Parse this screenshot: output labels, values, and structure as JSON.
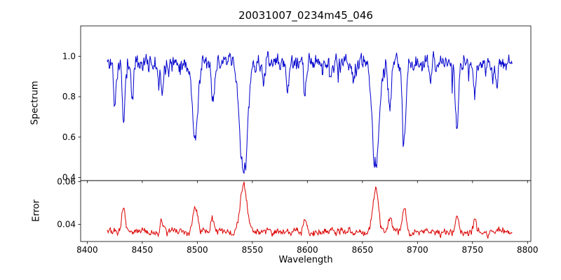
{
  "figure": {
    "title": "20031007_0234m45_046",
    "xlabel": "Wavelength",
    "ylabel_top": "Spectrum",
    "ylabel_bottom": "Error",
    "background": "#ffffff"
  },
  "chart_data": {
    "type": "line",
    "title": "20031007_0234m45_046",
    "xlabel": "Wavelength",
    "legend": "none",
    "grid": false,
    "seed": 11,
    "x_range": [
      8418,
      8786
    ],
    "x_step": 0.5,
    "xlim": [
      8394,
      8803
    ],
    "x_ticks": [
      8400,
      8450,
      8500,
      8550,
      8600,
      8650,
      8700,
      8750,
      8800
    ],
    "panels": [
      {
        "name": "spectrum",
        "ylabel": "Spectrum",
        "color": "#0000cd",
        "ylim": [
          0.385,
          1.15
        ],
        "y_ticks": [
          0.4,
          0.6,
          0.8,
          1.0
        ],
        "continuum": 0.97,
        "noise_sigma": 0.02,
        "minor_line_prob": 0.05,
        "minor_line_max_depth": 0.18,
        "absorption_lines": [
          {
            "center": 8425,
            "depth": 0.22,
            "width": 1.0
          },
          {
            "center": 8433,
            "depth": 0.3,
            "width": 1.2
          },
          {
            "center": 8441,
            "depth": 0.18,
            "width": 1.0
          },
          {
            "center": 8468,
            "depth": 0.15,
            "width": 1.2
          },
          {
            "center": 8498,
            "depth": 0.36,
            "width": 2.6
          },
          {
            "center": 8514,
            "depth": 0.2,
            "width": 1.3
          },
          {
            "center": 8542,
            "depth": 0.54,
            "width": 3.6
          },
          {
            "center": 8560,
            "depth": 0.1,
            "width": 1.0
          },
          {
            "center": 8582,
            "depth": 0.14,
            "width": 1.1
          },
          {
            "center": 8598,
            "depth": 0.16,
            "width": 1.2
          },
          {
            "center": 8621,
            "depth": 0.1,
            "width": 1.0
          },
          {
            "center": 8642,
            "depth": 0.1,
            "width": 1.0
          },
          {
            "center": 8662,
            "depth": 0.5,
            "width": 3.2
          },
          {
            "center": 8675,
            "depth": 0.24,
            "width": 1.4
          },
          {
            "center": 8688,
            "depth": 0.38,
            "width": 1.6
          },
          {
            "center": 8712,
            "depth": 0.12,
            "width": 1.1
          },
          {
            "center": 8736,
            "depth": 0.33,
            "width": 1.4
          },
          {
            "center": 8752,
            "depth": 0.17,
            "width": 1.2
          },
          {
            "center": 8772,
            "depth": 0.12,
            "width": 1.0
          }
        ]
      },
      {
        "name": "error",
        "ylabel": "Error",
        "color": "#dc0000",
        "ylim": [
          0.032,
          0.0605
        ],
        "y_ticks": [
          0.04,
          0.06
        ],
        "baseline": 0.0365,
        "noise_sigma": 0.0008,
        "peaks": [
          {
            "center": 8433,
            "amp": 0.011,
            "width": 1.5
          },
          {
            "center": 8468,
            "amp": 0.005,
            "width": 1.5
          },
          {
            "center": 8498,
            "amp": 0.012,
            "width": 2.2
          },
          {
            "center": 8514,
            "amp": 0.006,
            "width": 1.5
          },
          {
            "center": 8542,
            "amp": 0.021,
            "width": 3.0
          },
          {
            "center": 8598,
            "amp": 0.005,
            "width": 1.5
          },
          {
            "center": 8662,
            "amp": 0.02,
            "width": 2.6
          },
          {
            "center": 8675,
            "amp": 0.007,
            "width": 1.5
          },
          {
            "center": 8688,
            "amp": 0.012,
            "width": 1.6
          },
          {
            "center": 8736,
            "amp": 0.009,
            "width": 1.5
          },
          {
            "center": 8752,
            "amp": 0.006,
            "width": 1.3
          }
        ]
      }
    ]
  }
}
